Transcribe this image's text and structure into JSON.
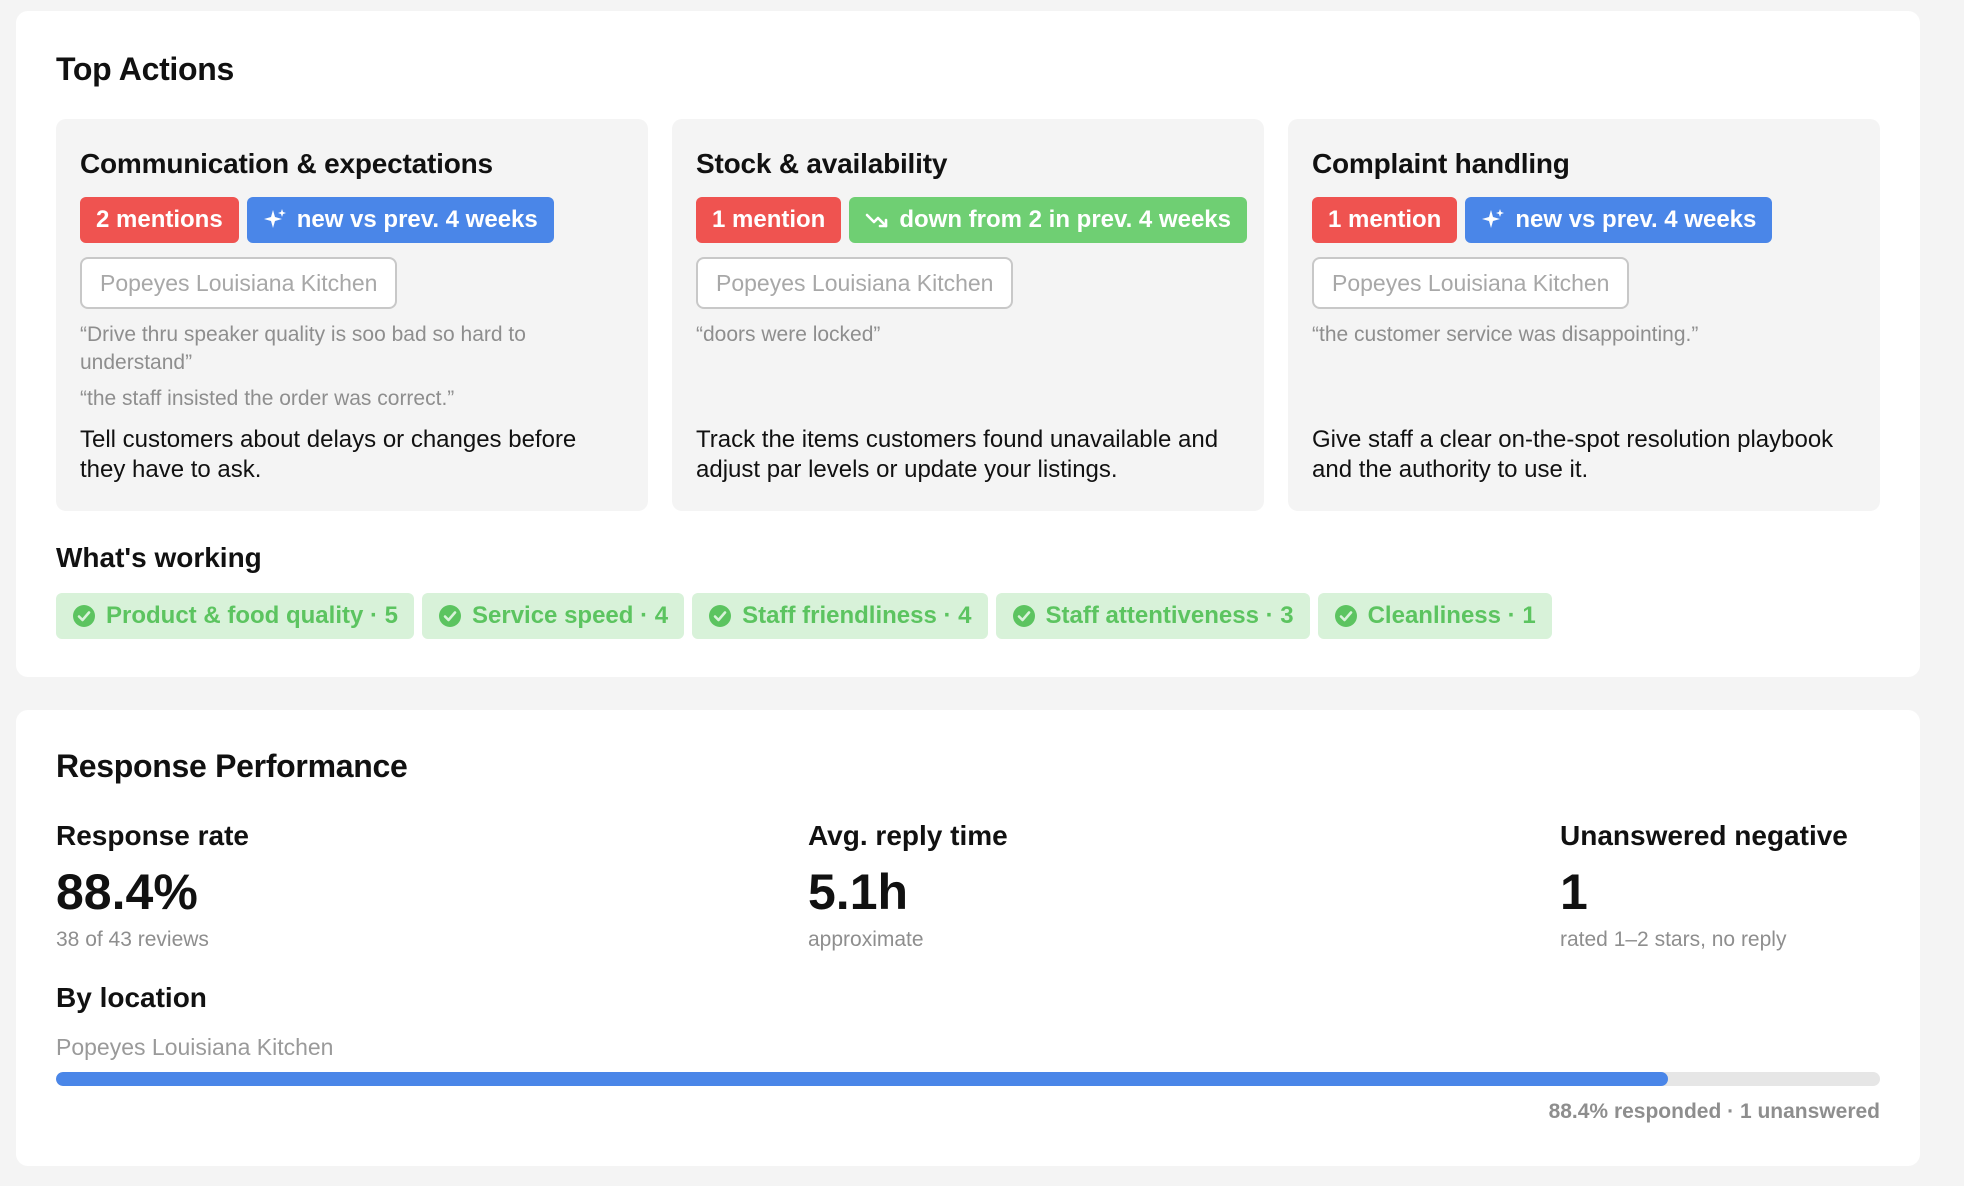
{
  "top_actions": {
    "title": "Top Actions",
    "cards": [
      {
        "title": "Communication & expectations",
        "mentions": "2 mentions",
        "trend": "new vs prev. 4 weeks",
        "trend_type": "new",
        "location": "Popeyes Louisiana Kitchen",
        "quotes": [
          "“Drive thru speaker quality is soo bad so hard to understand”",
          "“the staff insisted the order was correct.”"
        ],
        "action": "Tell customers about delays or changes before they have to ask."
      },
      {
        "title": "Stock & availability",
        "mentions": "1 mention",
        "trend": "down from 2 in prev. 4 weeks",
        "trend_type": "down",
        "location": "Popeyes Louisiana Kitchen",
        "quotes": [
          "“doors were locked”"
        ],
        "action": "Track the items customers found unavailable and adjust par levels or update your listings."
      },
      {
        "title": "Complaint handling",
        "mentions": "1 mention",
        "trend": "new vs prev. 4 weeks",
        "trend_type": "new",
        "location": "Popeyes Louisiana Kitchen",
        "quotes": [
          "“the customer service was disappointing.”"
        ],
        "action": "Give staff a clear on-the-spot resolution playbook and the authority to use it."
      }
    ]
  },
  "whats_working": {
    "title": "What's working",
    "items": [
      "Product & food quality · 5",
      "Service speed · 4",
      "Staff friendliness · 4",
      "Staff attentiveness · 3",
      "Cleanliness · 1"
    ]
  },
  "response_performance": {
    "title": "Response Performance",
    "metrics": [
      {
        "label": "Response rate",
        "value": "88.4%",
        "sub": "38 of 43 reviews"
      },
      {
        "label": "Avg. reply time",
        "value": "5.1h",
        "sub": "approximate"
      },
      {
        "label": "Unanswered negative",
        "value": "1",
        "sub": "rated 1–2 stars, no reply"
      }
    ],
    "by_location": {
      "title": "By location",
      "location": "Popeyes Louisiana Kitchen",
      "response_fraction": 0.884,
      "caption": "88.4% responded · 1 unanswered"
    }
  },
  "colors": {
    "mentions_badge": "#ef5350",
    "new_badge": "#4a86e8",
    "down_badge": "#6fcf73",
    "working_chip_bg": "#d8f2d9",
    "working_chip_text": "#5cc460",
    "bar_fill": "#4a86e8"
  },
  "icons": {
    "new_trend": "sparkle-icon",
    "down_trend": "trend-down-icon",
    "working": "check-circle-icon"
  }
}
